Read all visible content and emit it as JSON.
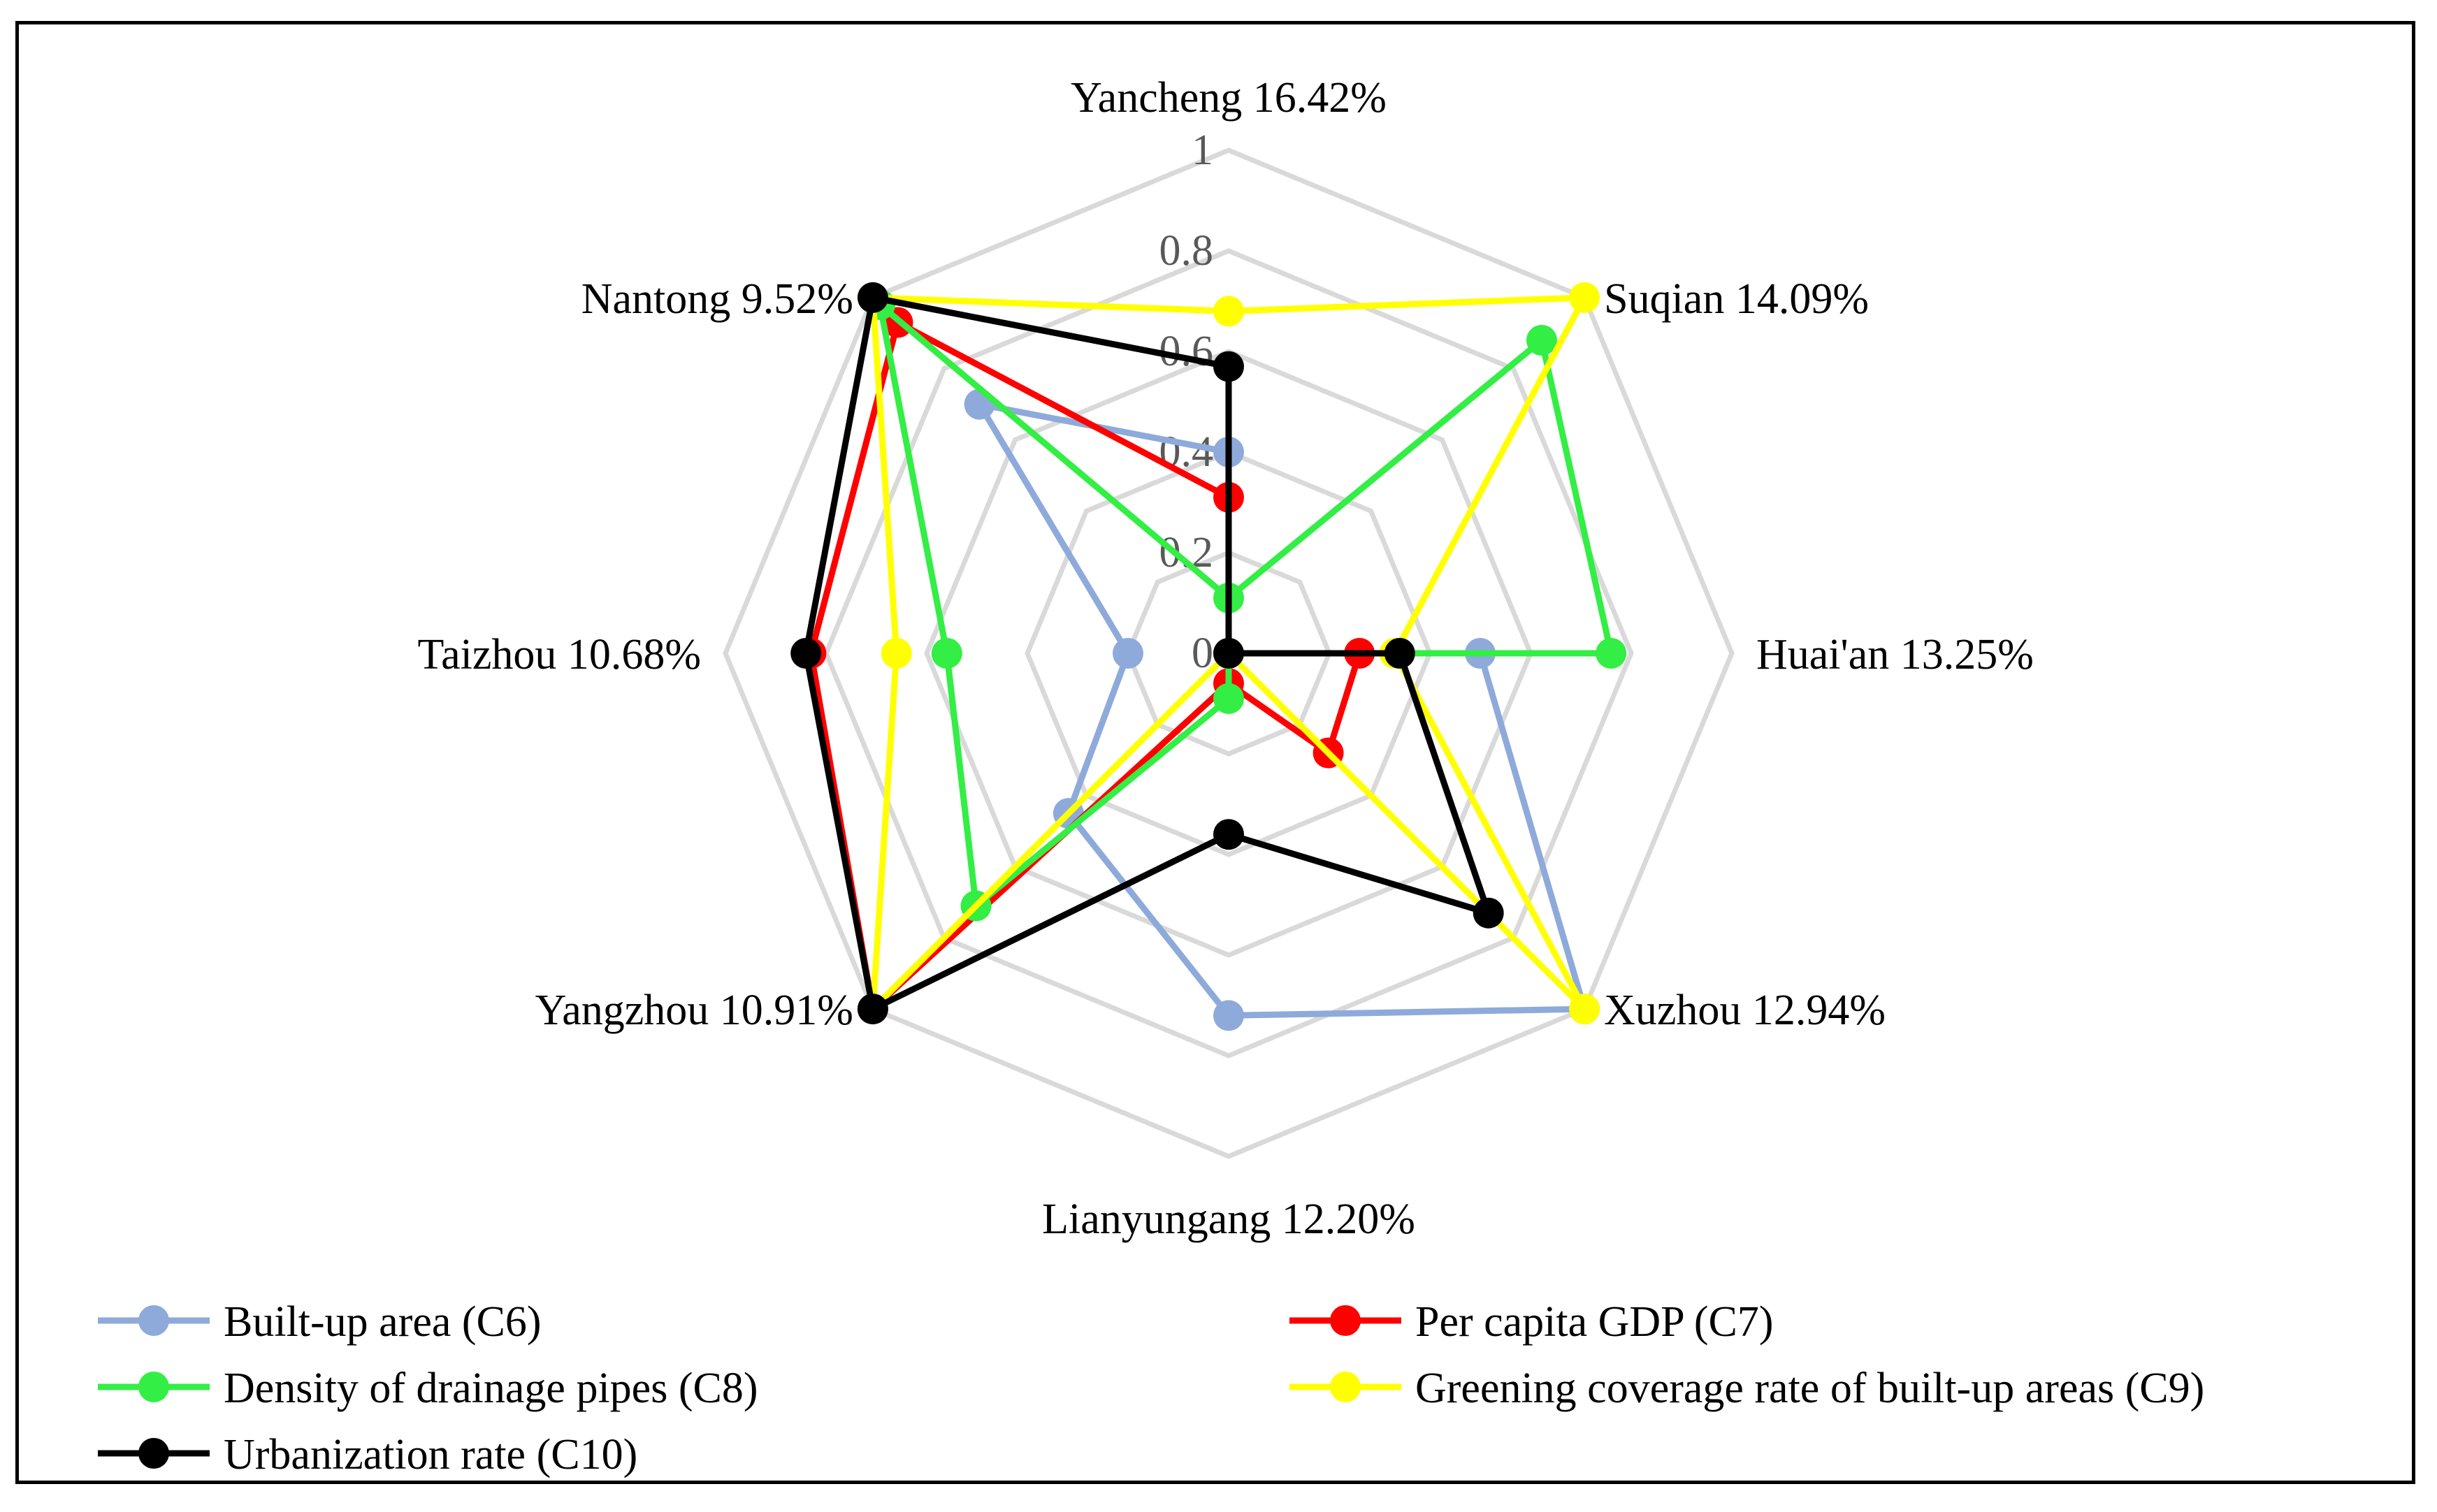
{
  "chart_data": {
    "type": "radar",
    "title": "",
    "axes": [
      "Yancheng 16.42%",
      "Suqian 14.09%",
      "Huai'an 13.25%",
      "Xuzhou 12.94%",
      "Lianyungang 12.20%",
      "Yangzhou 10.91%",
      "Taizhou 10.68%",
      "Nantong 9.52%"
    ],
    "rlim": [
      0,
      1
    ],
    "ticks": [
      "0",
      "0.2",
      "0.4",
      "0.6",
      "0.8",
      "1"
    ],
    "grid": true,
    "legend_position": "bottom",
    "series": [
      {
        "name": "Built-up area (C6)",
        "color": "#8eaadb",
        "values": [
          0.4,
          0.0,
          0.5,
          1.0,
          0.72,
          0.45,
          0.2,
          0.7
        ]
      },
      {
        "name": "Per capita GDP (C7)",
        "color": "#ff0000",
        "values": [
          0.31,
          0.0,
          0.26,
          0.28,
          0.06,
          1.0,
          0.83,
          0.93
        ]
      },
      {
        "name": "Density of drainage pipes (C8)",
        "color": "#33ee44",
        "values": [
          0.11,
          0.88,
          0.76,
          0.0,
          0.09,
          0.71,
          0.56,
          0.98
        ]
      },
      {
        "name": "Greening coverage rate of built-up areas (C9)",
        "color": "#ffff00",
        "values": [
          0.68,
          1.0,
          0.33,
          1.0,
          0.0,
          1.0,
          0.66,
          1.0
        ]
      },
      {
        "name": "Urbanization rate (C10)",
        "color": "#000000",
        "values": [
          0.57,
          0.0,
          0.34,
          0.73,
          0.36,
          1.0,
          0.84,
          1.0
        ]
      }
    ]
  }
}
